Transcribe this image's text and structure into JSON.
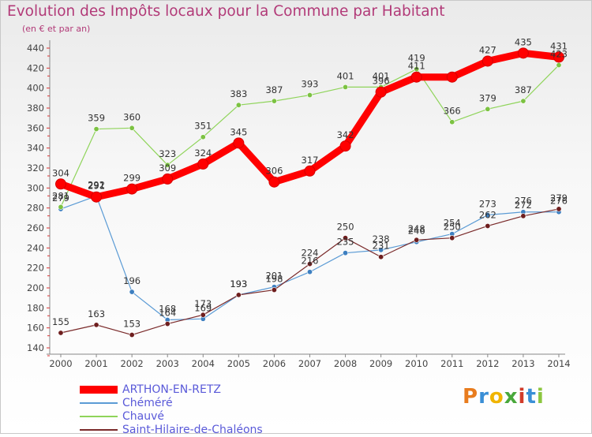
{
  "header": {
    "title": "Evolution des Impôts locaux pour la Commune par Habitant",
    "subtitle": "(en € et par an)"
  },
  "brand": {
    "letters": [
      "P",
      "r",
      "o",
      "x",
      "i",
      "t",
      "i"
    ],
    "colors": [
      "#e87c1e",
      "#3a8fd6",
      "#f0b400",
      "#49a83b",
      "#d23c2a",
      "#3a8fd6",
      "#8cc63f"
    ]
  },
  "chart_data": {
    "type": "line",
    "title": "Evolution des Impôts locaux pour la Commune par Habitant",
    "subtitle": "(en € et par an)",
    "xlabel": "",
    "ylabel": "",
    "categories": [
      "2000",
      "2001",
      "2002",
      "2003",
      "2004",
      "2005",
      "2006",
      "2007",
      "2008",
      "2009",
      "2010",
      "2011",
      "2012",
      "2013",
      "2014"
    ],
    "ylim": [
      140,
      440
    ],
    "yticks": [
      140,
      160,
      180,
      200,
      220,
      240,
      260,
      280,
      300,
      320,
      340,
      360,
      380,
      400,
      420,
      440
    ],
    "grid": false,
    "legend": "bottom-left",
    "series": [
      {
        "name": "ARTHON-EN-RETZ",
        "color": "#ff0000",
        "values": [
          304,
          291,
          299,
          309,
          324,
          345,
          306,
          317,
          342,
          396,
          411,
          411,
          427,
          435,
          431
        ],
        "labels": [
          "304",
          "291",
          "299",
          "309",
          "324",
          "345",
          "306",
          "317",
          "342",
          "396",
          "411",
          "",
          "427",
          "435",
          "431"
        ]
      },
      {
        "name": "Chéméré",
        "color": "#5b9bd5",
        "values": [
          279,
          292,
          196,
          168,
          169,
          193,
          201,
          216,
          235,
          238,
          246,
          254,
          273,
          276,
          276
        ],
        "labels": [
          "279",
          "292",
          "196",
          "168",
          "169",
          "193",
          "201",
          "216",
          "235",
          "238",
          "246",
          "254",
          "273",
          "276",
          "276"
        ]
      },
      {
        "name": "Chauvé",
        "color": "#8fd45a",
        "values": [
          281,
          359,
          360,
          323,
          351,
          383,
          387,
          393,
          401,
          401,
          419,
          366,
          379,
          387,
          423
        ],
        "labels": [
          "281",
          "359",
          "360",
          "323",
          "351",
          "383",
          "387",
          "393",
          "401",
          "401",
          "419",
          "366",
          "379",
          "387",
          "423"
        ]
      },
      {
        "name": "Saint-Hilaire-de-Chaléons",
        "color": "#7a2a2a",
        "values": [
          155,
          163,
          153,
          164,
          173,
          193,
          198,
          224,
          250,
          231,
          248,
          250,
          262,
          272,
          279
        ],
        "labels": [
          "155",
          "163",
          "153",
          "164",
          "173",
          "193",
          "198",
          "224",
          "250",
          "231",
          "248",
          "250",
          "262",
          "272",
          "279"
        ]
      }
    ]
  }
}
